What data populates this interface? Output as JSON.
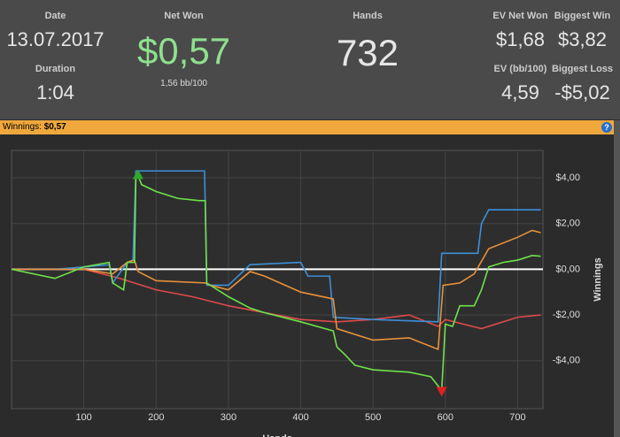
{
  "header": {
    "date_label": "Date",
    "date": "13.07.2017",
    "duration_label": "Duration",
    "duration": "1:04",
    "net_won_label": "Net Won",
    "net_won": "$0,57",
    "bb100": "1,56 bb/100",
    "hands_label": "Hands",
    "hands": "732",
    "ev_net_won_label": "EV Net Won",
    "ev_net_won": "$1,68",
    "biggest_win_label": "Biggest Win",
    "biggest_win": "$3,82",
    "ev_bb100_label": "EV (bb/100)",
    "ev_bb100": "4,59",
    "biggest_loss_label": "Biggest Loss",
    "biggest_loss": "-$5,02"
  },
  "bar": {
    "label": "Winnings:",
    "value": "$0,57",
    "help": "?"
  },
  "chart_data": {
    "type": "line",
    "x_label": "Hands",
    "y_label": "Winnings",
    "xlim": [
      0,
      735
    ],
    "ylim": [
      -6.1,
      5.2
    ],
    "xticks": [
      100,
      200,
      300,
      400,
      500,
      600,
      700
    ],
    "yticks": [
      {
        "value": 4,
        "label": "$4,00"
      },
      {
        "value": 2,
        "label": "$2,00"
      },
      {
        "value": 0,
        "label": "$0,00"
      },
      {
        "value": -2,
        "label": "-$2,00"
      },
      {
        "value": -4,
        "label": "-$4,00"
      }
    ],
    "grid": true,
    "series": [
      {
        "color": "#e04a4a",
        "x": [
          0,
          100,
          150,
          200,
          250,
          300,
          350,
          400,
          450,
          500,
          550,
          590,
          600,
          650,
          700,
          732
        ],
        "values": [
          0,
          0,
          -0.4,
          -0.9,
          -1.2,
          -1.6,
          -1.9,
          -2.2,
          -2.3,
          -2.2,
          -2.0,
          -2.5,
          -2.2,
          -2.6,
          -2.1,
          -2.0
        ]
      },
      {
        "color": "#3d8fd9",
        "x": [
          0,
          60,
          100,
          135,
          140,
          160,
          168,
          172,
          267,
          270,
          300,
          330,
          400,
          410,
          440,
          445,
          500,
          590,
          595,
          645,
          650,
          660,
          732
        ],
        "values": [
          0,
          0,
          0.1,
          0.2,
          -0.6,
          0.3,
          0.4,
          4.3,
          4.3,
          -0.7,
          -0.7,
          0.2,
          0.3,
          -0.3,
          -0.3,
          -2.1,
          -2.2,
          -2.3,
          0.7,
          0.7,
          2.0,
          2.6,
          2.6
        ]
      },
      {
        "color": "#e8913a",
        "x": [
          0,
          100,
          140,
          160,
          170,
          175,
          200,
          268,
          275,
          300,
          330,
          350,
          400,
          445,
          450,
          500,
          550,
          590,
          597,
          620,
          640,
          660,
          700,
          720,
          732
        ],
        "values": [
          0,
          0,
          -0.2,
          0.3,
          0.4,
          -0.1,
          -0.5,
          -0.6,
          -0.7,
          -0.9,
          -0.1,
          -0.3,
          -1.0,
          -1.3,
          -2.6,
          -3.1,
          -3.0,
          -3.5,
          -0.7,
          -0.6,
          -0.2,
          0.9,
          1.4,
          1.7,
          1.6
        ]
      },
      {
        "color": "#6fe24a",
        "x": [
          0,
          60,
          100,
          135,
          140,
          155,
          160,
          170,
          172,
          175,
          180,
          200,
          230,
          260,
          268,
          270,
          300,
          330,
          350,
          400,
          445,
          450,
          460,
          475,
          500,
          550,
          580,
          595,
          600,
          610,
          620,
          640,
          650,
          660,
          680,
          700,
          720,
          732
        ],
        "values": [
          0,
          -0.4,
          0.1,
          0.3,
          -0.6,
          -0.9,
          0.3,
          0.3,
          4.0,
          4.1,
          3.7,
          3.4,
          3.1,
          3.0,
          3.0,
          -0.6,
          -1.2,
          -1.7,
          -1.9,
          -2.3,
          -2.7,
          -3.4,
          -3.7,
          -4.2,
          -4.4,
          -4.5,
          -4.7,
          -5.3,
          -2.4,
          -2.5,
          -1.6,
          -1.6,
          -0.9,
          0.1,
          0.3,
          0.4,
          0.6,
          0.57
        ]
      }
    ],
    "markers": [
      {
        "x": 175,
        "y": 4.1,
        "color": "#2fa82f"
      },
      {
        "x": 595,
        "y": -5.3,
        "color": "#e02020"
      }
    ]
  }
}
